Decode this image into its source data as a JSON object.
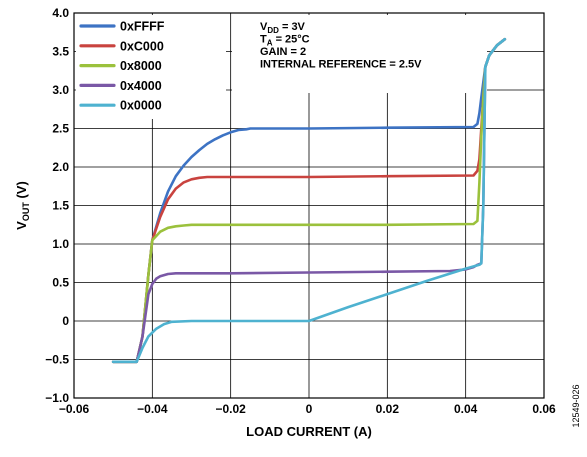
{
  "chart_data": {
    "type": "line",
    "xlabel": "LOAD CURRENT (A)",
    "ylabel_main": "V",
    "ylabel_sub": "OUT",
    "ylabel_unit": " (V)",
    "xlim": [
      -0.06,
      0.06
    ],
    "ylim": [
      -1.0,
      4.0
    ],
    "x_ticks": [
      -0.06,
      -0.04,
      -0.02,
      0,
      0.02,
      0.04,
      0.06
    ],
    "x_tick_labels": [
      "−0.06",
      "−0.04",
      "−0.02",
      "0",
      "0.02",
      "0.04",
      "0.06"
    ],
    "y_ticks": [
      -1.0,
      -0.5,
      0,
      0.5,
      1.0,
      1.5,
      2.0,
      2.5,
      3.0,
      3.5,
      4.0
    ],
    "y_tick_labels": [
      "−1.0",
      "−0.5",
      "0",
      "0.5",
      "1.0",
      "1.5",
      "2.0",
      "2.5",
      "3.0",
      "3.5",
      "4.0"
    ],
    "grid": true,
    "legend_position": "top-left",
    "conditions": [
      {
        "main": "V",
        "sub": "DD",
        "rest": " = 3V"
      },
      {
        "main": "T",
        "sub": "A",
        "rest": " = 25°C"
      },
      {
        "main": "GAIN = 2",
        "sub": "",
        "rest": ""
      },
      {
        "main": "INTERNAL REFERENCE = 2.5V",
        "sub": "",
        "rest": ""
      }
    ],
    "figure_id": "12549-026",
    "series": [
      {
        "name": "0xFFFF",
        "color": "#3d73c4",
        "x": [
          -0.05,
          -0.044,
          -0.0425,
          -0.041,
          -0.04,
          -0.038,
          -0.036,
          -0.034,
          -0.032,
          -0.03,
          -0.028,
          -0.026,
          -0.024,
          -0.022,
          -0.02,
          -0.018,
          -0.016,
          -0.015,
          0.0,
          0.02,
          0.042,
          0.043,
          0.0435,
          0.044,
          0.0445,
          0.045,
          0.046,
          0.048,
          0.05
        ],
        "y": [
          -0.53,
          -0.53,
          -0.2,
          0.6,
          1.05,
          1.4,
          1.68,
          1.88,
          2.02,
          2.13,
          2.22,
          2.3,
          2.36,
          2.41,
          2.45,
          2.48,
          2.49,
          2.5,
          2.5,
          2.51,
          2.52,
          2.56,
          2.7,
          2.9,
          3.1,
          3.3,
          3.45,
          3.58,
          3.66
        ]
      },
      {
        "name": "0xC000",
        "color": "#c9433f",
        "x": [
          -0.05,
          -0.044,
          -0.0425,
          -0.041,
          -0.04,
          -0.038,
          -0.036,
          -0.034,
          -0.032,
          -0.03,
          -0.028,
          -0.026,
          -0.02,
          0.0,
          0.02,
          0.042,
          0.043,
          0.0435,
          0.044,
          0.0445,
          0.045,
          0.046,
          0.048,
          0.05
        ],
        "y": [
          -0.53,
          -0.53,
          -0.2,
          0.6,
          1.05,
          1.35,
          1.58,
          1.72,
          1.8,
          1.84,
          1.86,
          1.87,
          1.87,
          1.87,
          1.88,
          1.89,
          1.95,
          2.1,
          2.5,
          2.9,
          3.3,
          3.45,
          3.58,
          3.66
        ]
      },
      {
        "name": "0x8000",
        "color": "#9bc13c",
        "x": [
          -0.05,
          -0.044,
          -0.0425,
          -0.041,
          -0.04,
          -0.038,
          -0.036,
          -0.034,
          -0.032,
          -0.03,
          -0.028,
          -0.02,
          0.0,
          0.02,
          0.042,
          0.043,
          0.0435,
          0.044,
          0.0445,
          0.045,
          0.046,
          0.048,
          0.05
        ],
        "y": [
          -0.53,
          -0.53,
          -0.2,
          0.6,
          1.05,
          1.16,
          1.21,
          1.23,
          1.24,
          1.25,
          1.25,
          1.25,
          1.25,
          1.25,
          1.26,
          1.3,
          1.8,
          2.4,
          2.9,
          3.3,
          3.45,
          3.58,
          3.66
        ]
      },
      {
        "name": "0x4000",
        "color": "#7a58a6",
        "x": [
          -0.05,
          -0.044,
          -0.0425,
          -0.041,
          -0.04,
          -0.039,
          -0.038,
          -0.036,
          -0.034,
          -0.03,
          -0.02,
          0.0,
          0.02,
          0.036,
          0.04,
          0.042,
          0.043,
          0.044,
          0.0445,
          0.045,
          0.046,
          0.048,
          0.05
        ],
        "y": [
          -0.53,
          -0.53,
          -0.2,
          0.35,
          0.48,
          0.55,
          0.58,
          0.61,
          0.62,
          0.62,
          0.62,
          0.63,
          0.64,
          0.65,
          0.67,
          0.7,
          0.73,
          0.75,
          1.5,
          3.3,
          3.45,
          3.58,
          3.66
        ]
      },
      {
        "name": "0x0000",
        "color": "#4eb2d0",
        "x": [
          -0.05,
          -0.044,
          -0.0425,
          -0.041,
          -0.039,
          -0.037,
          -0.035,
          -0.03,
          -0.02,
          -0.01,
          0.0,
          0.01,
          0.02,
          0.03,
          0.04,
          0.0435,
          0.044,
          0.0445,
          0.045,
          0.046,
          0.048,
          0.05
        ],
        "y": [
          -0.53,
          -0.53,
          -0.35,
          -0.2,
          -0.1,
          -0.04,
          -0.01,
          0.0,
          0.0,
          0.0,
          0.0,
          0.18,
          0.35,
          0.52,
          0.68,
          0.73,
          0.75,
          1.5,
          3.3,
          3.45,
          3.58,
          3.66
        ]
      }
    ]
  }
}
